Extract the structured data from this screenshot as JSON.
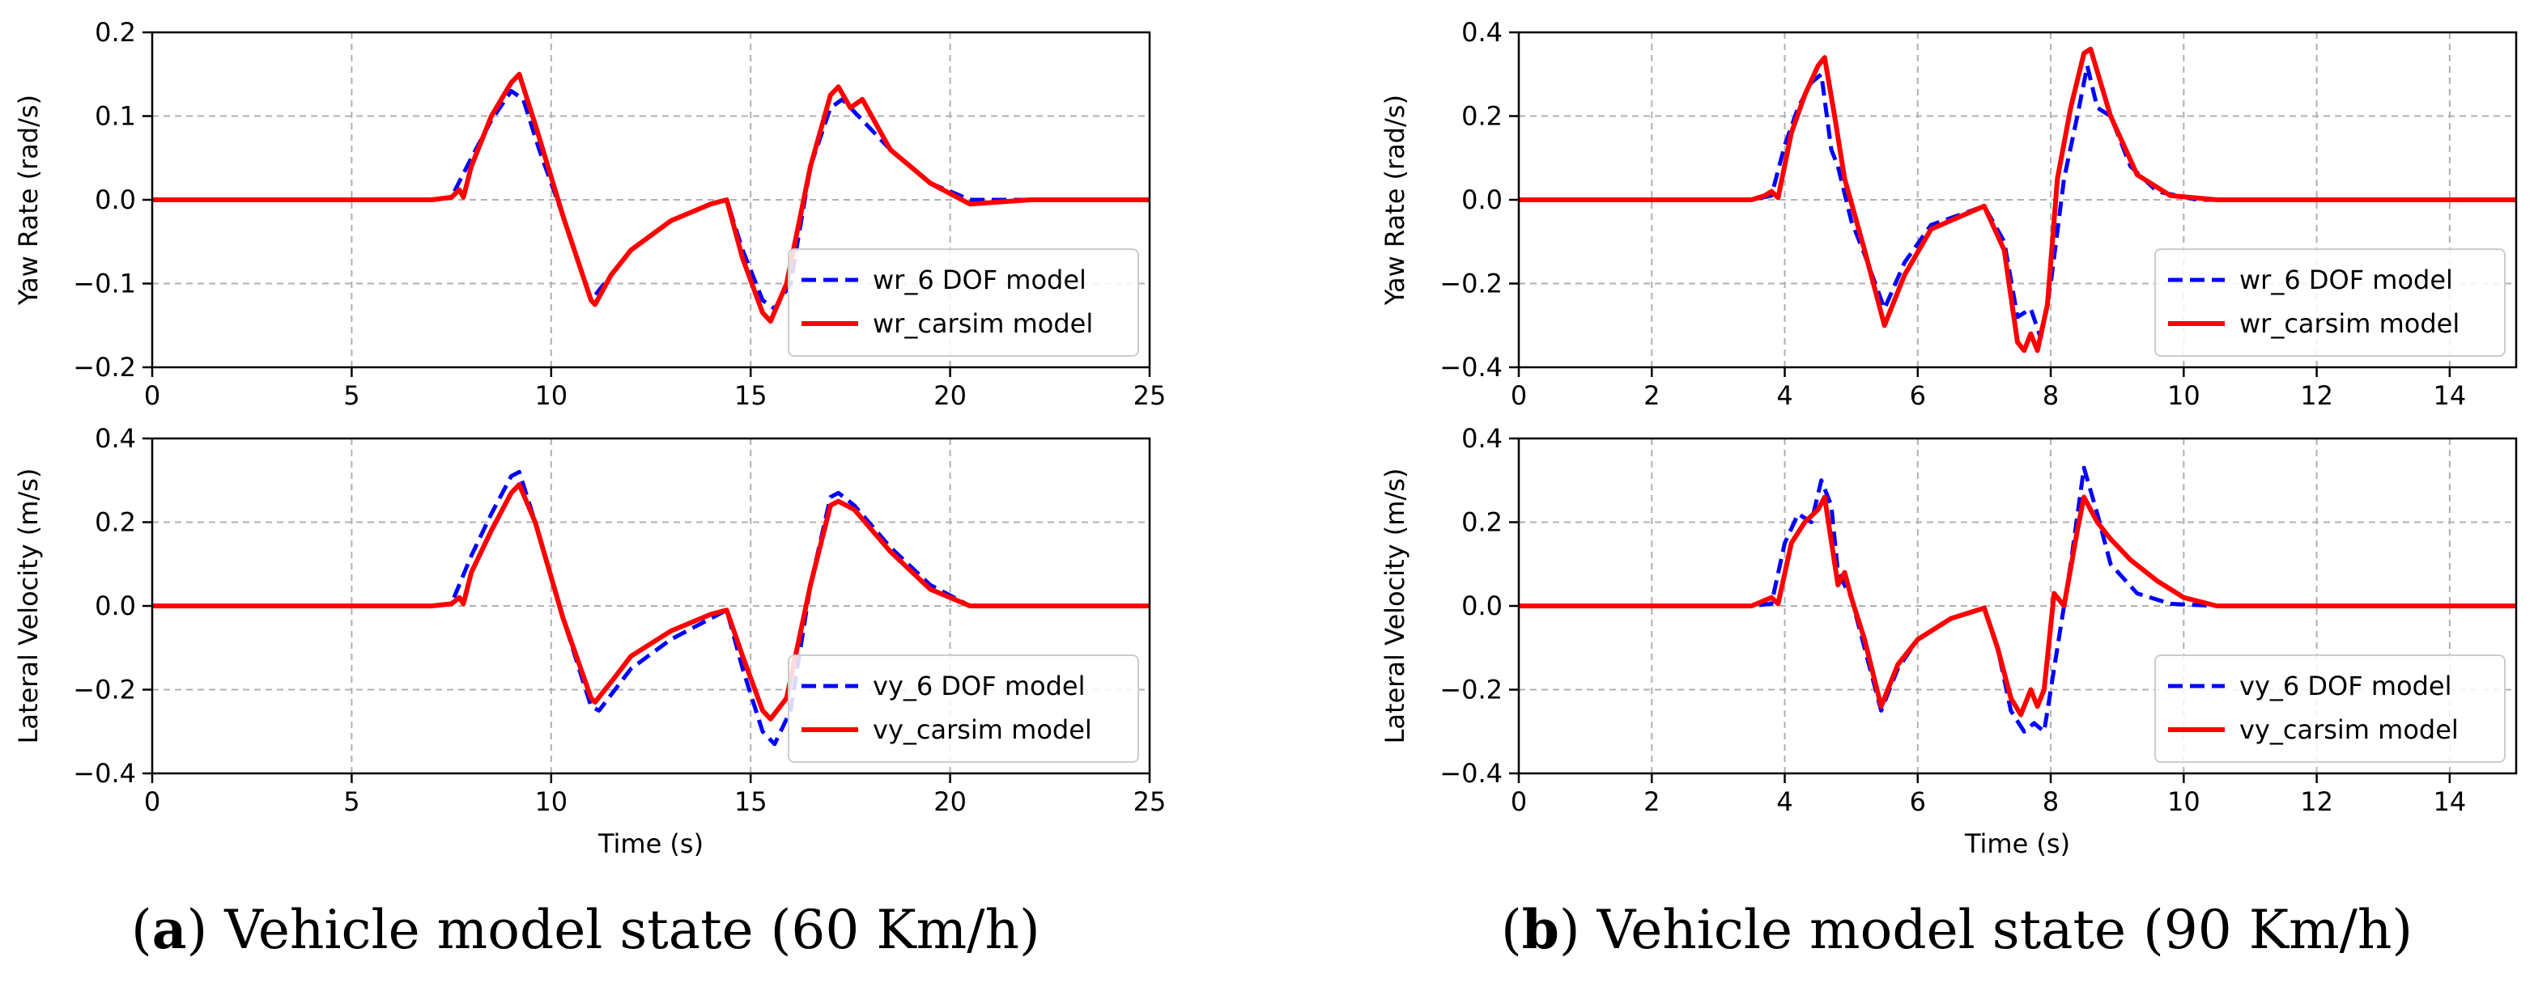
{
  "captions": {
    "a": {
      "letter": "a",
      "text": "Vehicle model state (60 Km/h)"
    },
    "b": {
      "letter": "b",
      "text": "Vehicle model state (90 Km/h)"
    }
  },
  "colors": {
    "model6dof": "#0000ff",
    "carsim": "#ff0000",
    "grid": "#b0b0b0",
    "axis": "#000000"
  },
  "chart_data": [
    {
      "id": "a-top",
      "type": "line",
      "panel": "a",
      "title": "",
      "xlabel": "",
      "ylabel": "Yaw Rate (rad/s)",
      "xlim": [
        0,
        25
      ],
      "ylim": [
        -0.2,
        0.2
      ],
      "xticks": [
        0,
        5,
        10,
        15,
        20,
        25
      ],
      "yticks": [
        -0.2,
        -0.1,
        0.0,
        0.1,
        0.2
      ],
      "xtick_labels": [
        "0",
        "5",
        "10",
        "15",
        "20",
        "25"
      ],
      "ytick_labels": [
        "−0.2",
        "−0.1",
        "0.0",
        "0.1",
        "0.2"
      ],
      "grid": true,
      "legend_position": "lower-right",
      "series": [
        {
          "name": "wr_6 DOF model",
          "style": "dashed",
          "color": "#0000ff",
          "x": [
            0,
            7.0,
            7.5,
            8.0,
            8.5,
            9.0,
            9.3,
            9.7,
            10.3,
            11.0,
            11.5,
            12.0,
            13.0,
            14.0,
            14.4,
            14.8,
            15.3,
            15.6,
            16.0,
            16.5,
            17.0,
            17.3,
            17.7,
            18.5,
            19.5,
            20.5,
            22,
            25
          ],
          "y": [
            0,
            0,
            0.003,
            0.05,
            0.095,
            0.13,
            0.12,
            0.06,
            -0.02,
            -0.12,
            -0.09,
            -0.06,
            -0.025,
            -0.005,
            0,
            -0.06,
            -0.12,
            -0.13,
            -0.1,
            0.04,
            0.11,
            0.12,
            0.1,
            0.06,
            0.02,
            0,
            0,
            0
          ]
        },
        {
          "name": "wr_carsim model",
          "style": "solid",
          "color": "#ff0000",
          "x": [
            0,
            7.0,
            7.5,
            7.7,
            7.8,
            8.0,
            8.5,
            9.0,
            9.2,
            9.6,
            10.3,
            11.0,
            11.1,
            11.5,
            12.0,
            13.0,
            14.0,
            14.4,
            14.8,
            15.3,
            15.5,
            15.9,
            16.5,
            17.0,
            17.2,
            17.5,
            17.8,
            18.5,
            19.5,
            20.5,
            22,
            25
          ],
          "y": [
            0,
            0,
            0.003,
            0.012,
            0.003,
            0.04,
            0.1,
            0.14,
            0.15,
            0.09,
            -0.02,
            -0.12,
            -0.125,
            -0.09,
            -0.06,
            -0.025,
            -0.005,
            0,
            -0.07,
            -0.135,
            -0.145,
            -0.1,
            0.04,
            0.125,
            0.135,
            0.11,
            0.12,
            0.06,
            0.02,
            -0.005,
            0,
            0
          ]
        }
      ]
    },
    {
      "id": "a-bottom",
      "type": "line",
      "panel": "a",
      "title": "",
      "xlabel": "Time (s)",
      "ylabel": "Lateral Velocity (m/s)",
      "xlim": [
        0,
        25
      ],
      "ylim": [
        -0.4,
        0.4
      ],
      "xticks": [
        0,
        5,
        10,
        15,
        20,
        25
      ],
      "yticks": [
        -0.4,
        -0.2,
        0.0,
        0.2,
        0.4
      ],
      "xtick_labels": [
        "0",
        "5",
        "10",
        "15",
        "20",
        "25"
      ],
      "ytick_labels": [
        "−0.4",
        "−0.2",
        "0.0",
        "0.2",
        "0.4"
      ],
      "grid": true,
      "legend_position": "lower-right",
      "series": [
        {
          "name": "vy_6 DOF model",
          "style": "dashed",
          "color": "#0000ff",
          "x": [
            0,
            7.0,
            7.5,
            8.0,
            8.5,
            9.0,
            9.2,
            9.6,
            10.3,
            11.0,
            11.2,
            11.6,
            12.0,
            13.0,
            14.0,
            14.4,
            14.8,
            15.3,
            15.6,
            16.0,
            16.5,
            17.0,
            17.2,
            17.6,
            18.5,
            19.5,
            20.5,
            22,
            25
          ],
          "y": [
            0,
            0,
            0.005,
            0.12,
            0.22,
            0.31,
            0.32,
            0.2,
            -0.03,
            -0.24,
            -0.25,
            -0.2,
            -0.15,
            -0.08,
            -0.03,
            -0.01,
            -0.15,
            -0.3,
            -0.33,
            -0.25,
            0.05,
            0.26,
            0.27,
            0.24,
            0.14,
            0.05,
            0,
            0,
            0
          ]
        },
        {
          "name": "vy_carsim model",
          "style": "solid",
          "color": "#ff0000",
          "x": [
            0,
            7.0,
            7.5,
            7.7,
            7.8,
            8.0,
            8.5,
            9.0,
            9.2,
            9.6,
            10.3,
            11.0,
            11.1,
            11.6,
            12.0,
            13.0,
            14.0,
            14.4,
            14.8,
            15.3,
            15.5,
            15.9,
            16.5,
            17.0,
            17.2,
            17.6,
            18.5,
            19.5,
            20.5,
            22,
            25
          ],
          "y": [
            0,
            0,
            0.005,
            0.02,
            0.005,
            0.08,
            0.18,
            0.27,
            0.29,
            0.2,
            -0.03,
            -0.22,
            -0.23,
            -0.17,
            -0.12,
            -0.06,
            -0.02,
            -0.01,
            -0.12,
            -0.25,
            -0.27,
            -0.22,
            0.05,
            0.24,
            0.25,
            0.23,
            0.13,
            0.04,
            0,
            0,
            0
          ]
        }
      ]
    },
    {
      "id": "b-top",
      "type": "line",
      "panel": "b",
      "title": "",
      "xlabel": "",
      "ylabel": "Yaw Rate (rad/s)",
      "xlim": [
        0,
        15
      ],
      "ylim": [
        -0.4,
        0.4
      ],
      "xticks": [
        0,
        2,
        4,
        6,
        8,
        10,
        12,
        14
      ],
      "yticks": [
        -0.4,
        -0.2,
        0.0,
        0.2,
        0.4
      ],
      "xtick_labels": [
        "0",
        "2",
        "4",
        "6",
        "8",
        "10",
        "12",
        "14"
      ],
      "ytick_labels": [
        "−0.4",
        "−0.2",
        "0.0",
        "0.2",
        "0.4"
      ],
      "grid": true,
      "legend_position": "lower-right",
      "series": [
        {
          "name": "wr_6 DOF model",
          "style": "dashed",
          "color": "#0000ff",
          "x": [
            0,
            3.5,
            3.8,
            4.0,
            4.2,
            4.4,
            4.55,
            4.7,
            4.8,
            5.0,
            5.2,
            5.5,
            5.8,
            6.2,
            7.0,
            7.3,
            7.5,
            7.7,
            7.85,
            8.0,
            8.2,
            8.4,
            8.55,
            8.7,
            8.9,
            9.2,
            9.6,
            10.2,
            11,
            15
          ],
          "y": [
            0,
            0,
            0.01,
            0.13,
            0.22,
            0.28,
            0.3,
            0.12,
            0.08,
            -0.05,
            -0.13,
            -0.26,
            -0.15,
            -0.06,
            -0.015,
            -0.1,
            -0.28,
            -0.26,
            -0.33,
            -0.2,
            0.05,
            0.2,
            0.32,
            0.22,
            0.2,
            0.08,
            0.02,
            0,
            0,
            0
          ]
        },
        {
          "name": "wr_carsim model",
          "style": "solid",
          "color": "#ff0000",
          "x": [
            0,
            3.5,
            3.7,
            3.8,
            3.9,
            4.1,
            4.3,
            4.5,
            4.6,
            4.75,
            4.9,
            5.2,
            5.5,
            5.8,
            6.2,
            7.0,
            7.3,
            7.5,
            7.6,
            7.7,
            7.8,
            7.95,
            8.1,
            8.3,
            8.5,
            8.6,
            8.9,
            9.3,
            9.8,
            10.5,
            15
          ],
          "y": [
            0,
            0,
            0.01,
            0.02,
            0.005,
            0.16,
            0.25,
            0.32,
            0.34,
            0.2,
            0.05,
            -0.12,
            -0.3,
            -0.18,
            -0.07,
            -0.015,
            -0.12,
            -0.34,
            -0.36,
            -0.32,
            -0.36,
            -0.25,
            0.05,
            0.22,
            0.35,
            0.36,
            0.2,
            0.06,
            0.01,
            0,
            0
          ]
        }
      ]
    },
    {
      "id": "b-bottom",
      "type": "line",
      "panel": "b",
      "title": "",
      "xlabel": "Time (s)",
      "ylabel": "Lateral Velocity (m/s)",
      "xlim": [
        0,
        15
      ],
      "ylim": [
        -0.4,
        0.4
      ],
      "xticks": [
        0,
        2,
        4,
        6,
        8,
        10,
        12,
        14
      ],
      "yticks": [
        -0.4,
        -0.2,
        0.0,
        0.2,
        0.4
      ],
      "xtick_labels": [
        "0",
        "2",
        "4",
        "6",
        "8",
        "10",
        "12",
        "14"
      ],
      "ytick_labels": [
        "−0.4",
        "−0.2",
        "0.0",
        "0.2",
        "0.4"
      ],
      "grid": true,
      "legend_position": "lower-right",
      "series": [
        {
          "name": "vy_6 DOF model",
          "style": "dashed",
          "color": "#0000ff",
          "x": [
            0,
            3.5,
            3.8,
            4.0,
            4.2,
            4.4,
            4.55,
            4.7,
            4.8,
            5.0,
            5.2,
            5.45,
            5.7,
            6.0,
            6.5,
            7.0,
            7.2,
            7.4,
            7.6,
            7.75,
            7.9,
            8.1,
            8.3,
            8.5,
            8.7,
            8.9,
            9.3,
            9.8,
            10.5,
            15
          ],
          "y": [
            0,
            0,
            0.005,
            0.15,
            0.22,
            0.2,
            0.3,
            0.24,
            0.08,
            0.02,
            -0.1,
            -0.25,
            -0.15,
            -0.08,
            -0.03,
            -0.005,
            -0.1,
            -0.25,
            -0.3,
            -0.28,
            -0.3,
            -0.1,
            0.1,
            0.33,
            0.22,
            0.1,
            0.03,
            0.005,
            0,
            0
          ]
        },
        {
          "name": "vy_carsim model",
          "style": "solid",
          "color": "#ff0000",
          "x": [
            0,
            3.5,
            3.8,
            3.9,
            4.1,
            4.3,
            4.5,
            4.6,
            4.8,
            4.9,
            5.0,
            5.2,
            5.45,
            5.7,
            6.0,
            6.5,
            7.0,
            7.2,
            7.4,
            7.55,
            7.7,
            7.8,
            7.9,
            8.05,
            8.2,
            8.4,
            8.5,
            8.7,
            8.9,
            9.2,
            9.6,
            10.0,
            10.5,
            15
          ],
          "y": [
            0,
            0,
            0.02,
            0.005,
            0.15,
            0.2,
            0.23,
            0.26,
            0.05,
            0.08,
            0.02,
            -0.08,
            -0.24,
            -0.14,
            -0.08,
            -0.03,
            -0.005,
            -0.1,
            -0.22,
            -0.26,
            -0.2,
            -0.24,
            -0.2,
            0.03,
            0.0,
            0.18,
            0.26,
            0.2,
            0.16,
            0.11,
            0.06,
            0.02,
            0,
            0
          ]
        }
      ]
    }
  ]
}
